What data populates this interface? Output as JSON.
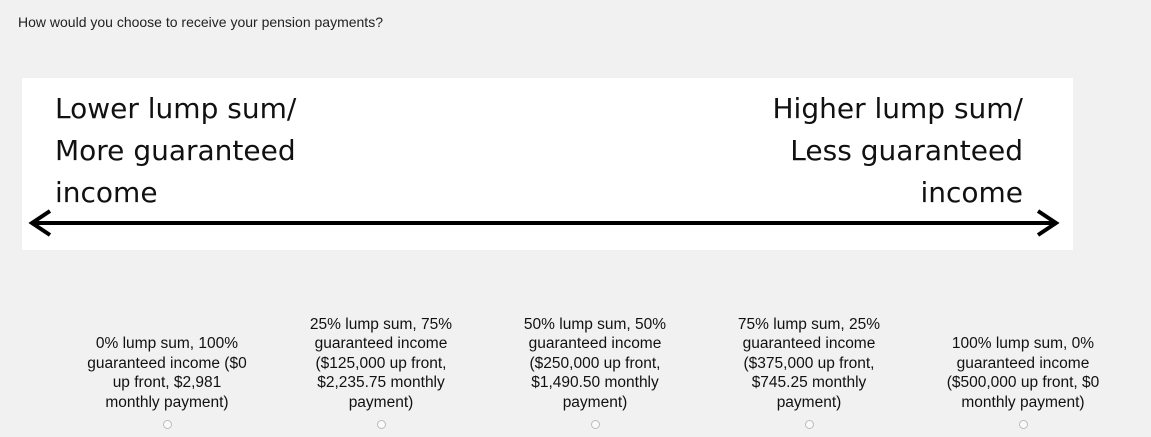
{
  "question": "How would you choose to receive your pension payments?",
  "scale": {
    "left_label": [
      "Lower lump sum/",
      "More guaranteed",
      "income"
    ],
    "right_label": [
      "Higher lump sum/",
      "Less guaranteed",
      "income"
    ]
  },
  "options": [
    {
      "lines": [
        "0% lump sum, 100%",
        "guaranteed income ($0",
        "up front, $2,981",
        "monthly payment)"
      ]
    },
    {
      "lines": [
        "25% lump sum, 75%",
        "guaranteed income",
        "($125,000 up front,",
        "$2,235.75 monthly",
        "payment)"
      ]
    },
    {
      "lines": [
        "50% lump sum, 50%",
        "guaranteed income",
        "($250,000 up front,",
        "$1,490.50 monthly",
        "payment)"
      ]
    },
    {
      "lines": [
        "75% lump sum, 25%",
        "guaranteed income",
        "($375,000 up front,",
        "$745.25 monthly",
        "payment)"
      ]
    },
    {
      "lines": [
        "100% lump sum, 0%",
        "guaranteed income",
        "($500,000 up front, $0",
        "monthly payment)"
      ]
    }
  ]
}
